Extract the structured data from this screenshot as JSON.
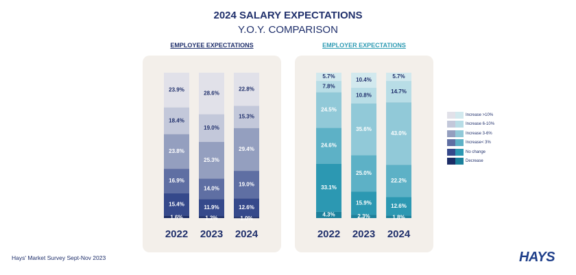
{
  "title": "2024 SALARY EXPECTATIONS",
  "subtitle": "Y.O.Y. COMPARISON",
  "panels": {
    "employee_title": "EMPLOYEE EXPECTATIONS",
    "employer_title": "EMPLOYER EXPECTATIONS"
  },
  "legend": {
    "items": [
      "Increase >10%",
      "Increase 6-10%",
      "Increase 3-6%",
      "Increase< 3%",
      "No change",
      "Decrease"
    ]
  },
  "colors": {
    "employee": [
      "#e1e1e9",
      "#c3c8da",
      "#949fbf",
      "#5f6fa3",
      "#35498b",
      "#1c2d66"
    ],
    "employer": [
      "#d2e9ee",
      "#b8dde6",
      "#91c9d8",
      "#5db1c6",
      "#2c98b2",
      "#1b809b"
    ],
    "text_dark": "#1f2f6b",
    "text_light": "#ffffff"
  },
  "footer": "Hays' Market Survey Sept-Nov 2023",
  "logo": "HAYS",
  "chart_data": [
    {
      "type": "bar",
      "stacked": true,
      "title": "EMPLOYEE EXPECTATIONS",
      "categories": [
        "2022",
        "2023",
        "2024"
      ],
      "series": [
        {
          "name": "Increase >10%",
          "values": [
            23.9,
            28.6,
            22.8
          ]
        },
        {
          "name": "Increase 6-10%",
          "values": [
            18.4,
            19.0,
            15.3
          ]
        },
        {
          "name": "Increase 3-6%",
          "values": [
            23.8,
            25.3,
            29.4
          ]
        },
        {
          "name": "Increase< 3%",
          "values": [
            16.9,
            14.0,
            19.0
          ]
        },
        {
          "name": "No change",
          "values": [
            15.4,
            11.9,
            12.6
          ]
        },
        {
          "name": "Decrease",
          "values": [
            1.6,
            1.2,
            1.0
          ]
        }
      ],
      "value_labels": [
        [
          "23.9%",
          "18.4%",
          "23.8%",
          "16.9%",
          "15.4%",
          "1.6%"
        ],
        [
          "28.6%",
          "19.0%",
          "25.3%",
          "14.0%",
          "11.9%",
          "1.2%"
        ],
        [
          "22.8%",
          "15.3%",
          "29.4%",
          "19.0%",
          "12.6%",
          "1.0%"
        ]
      ]
    },
    {
      "type": "bar",
      "stacked": true,
      "title": "EMPLOYER EXPECTATIONS",
      "categories": [
        "2022",
        "2023",
        "2024"
      ],
      "series": [
        {
          "name": "Increase >10%",
          "values": [
            5.7,
            10.4,
            5.7
          ]
        },
        {
          "name": "Increase 6-10%",
          "values": [
            7.8,
            10.8,
            14.7
          ]
        },
        {
          "name": "Increase 3-6%",
          "values": [
            24.5,
            35.6,
            43.0
          ]
        },
        {
          "name": "Increase< 3%",
          "values": [
            24.6,
            25.0,
            22.2
          ]
        },
        {
          "name": "No change",
          "values": [
            33.1,
            15.9,
            12.6
          ]
        },
        {
          "name": "Decrease",
          "values": [
            4.3,
            2.3,
            1.8
          ]
        }
      ],
      "value_labels": [
        [
          "5.7%",
          "7.8%",
          "24.5%",
          "24.6%",
          "33.1%",
          "4.3%"
        ],
        [
          "10.4%",
          "10.8%",
          "35.6%",
          "25.0%",
          "15.9%",
          "2.3%"
        ],
        [
          "5.7%",
          "14.7%",
          "43.0%",
          "22.2%",
          "12.6%",
          "1.8%"
        ]
      ]
    }
  ]
}
